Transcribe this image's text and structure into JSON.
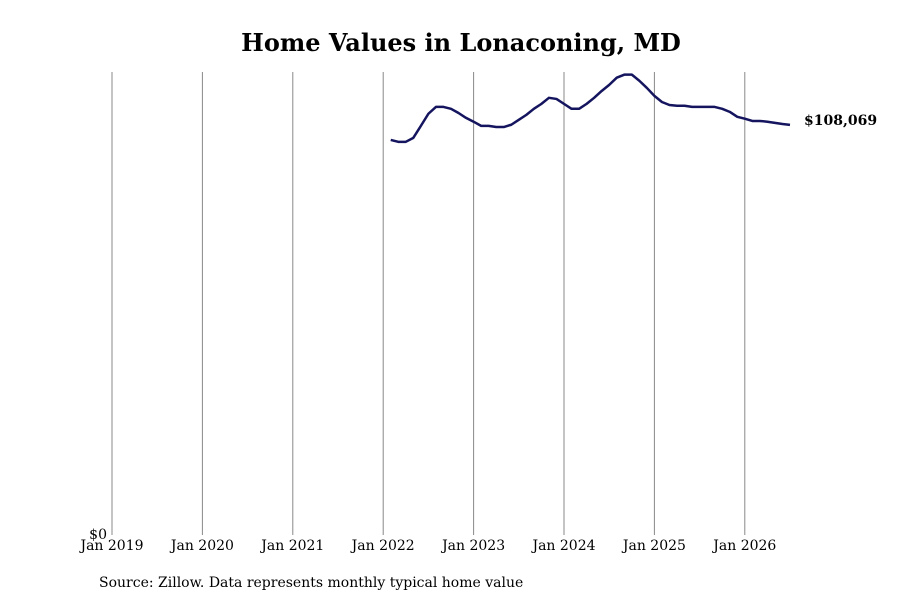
{
  "chart_data": {
    "type": "line",
    "title": "Home Values in Lonaconing, MD",
    "source": "Source: Zillow. Data represents monthly typical home value",
    "x": [
      "2022-02",
      "2022-03",
      "2022-04",
      "2022-05",
      "2022-06",
      "2022-07",
      "2022-08",
      "2022-09",
      "2022-10",
      "2022-11",
      "2022-12",
      "2023-01",
      "2023-02",
      "2023-03",
      "2023-04",
      "2023-05",
      "2023-06",
      "2023-07",
      "2023-08",
      "2023-09",
      "2023-10",
      "2023-11",
      "2023-12",
      "2024-01",
      "2024-02",
      "2024-03",
      "2024-04",
      "2024-05",
      "2024-06",
      "2024-07",
      "2024-08",
      "2024-09",
      "2024-10",
      "2024-11",
      "2024-12",
      "2025-01",
      "2025-02",
      "2025-03",
      "2025-04",
      "2025-05",
      "2025-06",
      "2025-07",
      "2025-08",
      "2025-09",
      "2025-10",
      "2025-11",
      "2025-12",
      "2026-01",
      "2026-02",
      "2026-03",
      "2026-04",
      "2026-05",
      "2026-06",
      "2026-07"
    ],
    "series": [
      {
        "color": "#14145f",
        "values": [
          104100,
          103600,
          103600,
          104650,
          107800,
          111000,
          112800,
          112800,
          112300,
          111200,
          109900,
          108900,
          107800,
          107800,
          107500,
          107500,
          108100,
          109400,
          110700,
          112300,
          113600,
          115200,
          114900,
          113600,
          112300,
          112300,
          113600,
          115200,
          117000,
          118600,
          120500,
          121300,
          121300,
          119700,
          117800,
          115700,
          114100,
          113300,
          113100,
          113100,
          112800,
          112800,
          112800,
          112800,
          112300,
          111500,
          110200,
          109700,
          109100,
          109100,
          108900,
          108600,
          108300,
          108069
        ],
        "value_labels": [
          null,
          null,
          null,
          null,
          null,
          null,
          null,
          null,
          null,
          null,
          null,
          null,
          null,
          null,
          null,
          null,
          null,
          null,
          null,
          null,
          null,
          null,
          null,
          null,
          null,
          null,
          null,
          null,
          null,
          null,
          null,
          null,
          null,
          null,
          null,
          null,
          null,
          null,
          null,
          null,
          null,
          null,
          null,
          null,
          null,
          null,
          null,
          null,
          null,
          null,
          null,
          null,
          null,
          "$108,069"
        ]
      }
    ],
    "xlim": [
      "2019-01",
      "2026-07"
    ],
    "xticks": [
      {
        "value": "2019-01",
        "label": "Jan 2019"
      },
      {
        "value": "2020-01",
        "label": "Jan 2020"
      },
      {
        "value": "2021-01",
        "label": "Jan 2021"
      },
      {
        "value": "2022-01",
        "label": "Jan 2022"
      },
      {
        "value": "2023-01",
        "label": "Jan 2023"
      },
      {
        "value": "2024-01",
        "label": "Jan 2024"
      },
      {
        "value": "2025-01",
        "label": "Jan 2025"
      },
      {
        "value": "2026-01",
        "label": "Jan 2026"
      }
    ],
    "ylim": [
      0,
      122000
    ],
    "yticks": [
      {
        "value": 0,
        "label": "$0"
      }
    ],
    "grid": true
  }
}
